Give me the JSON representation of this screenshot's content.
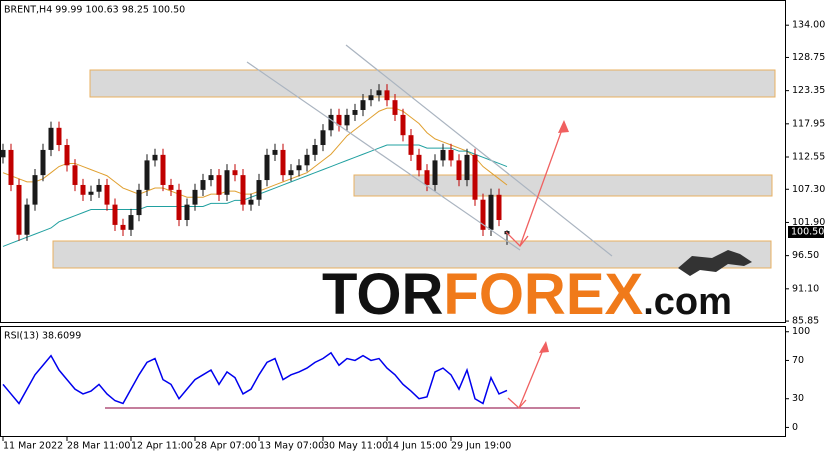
{
  "chart_data": {
    "type": "candlestick",
    "header": "BRENT,H4  99.99 100.63 98.25 100.50",
    "last_price_label": "100.50",
    "categories": [
      "11 Mar 2022",
      null,
      null,
      null,
      null,
      null,
      null,
      null,
      "28 Mar 11:00",
      null,
      null,
      null,
      null,
      null,
      null,
      null,
      "12 Apr 11:00",
      null,
      null,
      null,
      null,
      null,
      null,
      null,
      "28 Apr 07:00",
      null,
      null,
      null,
      null,
      null,
      null,
      null,
      "13 May 07:00",
      null,
      null,
      null,
      null,
      null,
      null,
      null,
      "30 May 11:00",
      null,
      null,
      null,
      null,
      null,
      null,
      null,
      "14 Jun 15:00",
      null,
      null,
      null,
      null,
      null,
      null,
      null,
      "29 Jun 19:00",
      null,
      null,
      null,
      null,
      null,
      null,
      null
    ],
    "open": [
      112.5,
      113.7,
      108.0,
      99.9,
      104.8,
      109.6,
      113.7,
      117.3,
      114.5,
      111.2,
      108.0,
      106.4,
      106.9,
      108.0,
      104.8,
      101.5,
      100.7,
      103.1,
      107.2,
      112.0,
      112.9,
      108.0,
      107.2,
      102.3,
      104.8,
      107.2,
      108.8,
      109.6,
      106.4,
      110.4,
      109.6,
      104.8,
      105.6,
      108.8,
      112.9,
      113.7,
      109.6,
      110.4,
      111.2,
      112.9,
      114.5,
      116.9,
      119.4,
      117.7,
      119.4,
      120.2,
      121.8,
      122.6,
      123.4,
      121.8,
      119.4,
      116.1,
      112.9,
      110.4,
      108.0,
      112.0,
      113.7,
      112.0,
      108.8,
      112.9,
      105.6,
      100.7,
      106.4,
      99.99
    ],
    "high": [
      114.7,
      114.7,
      109.0,
      105.8,
      110.6,
      114.7,
      118.3,
      118.3,
      115.5,
      112.2,
      109.0,
      107.9,
      109.0,
      109.0,
      105.8,
      102.5,
      104.1,
      108.2,
      113.0,
      113.9,
      113.9,
      109.0,
      108.2,
      105.8,
      108.2,
      109.8,
      110.6,
      110.6,
      111.4,
      111.4,
      110.6,
      106.6,
      109.8,
      113.9,
      114.7,
      114.7,
      111.4,
      112.2,
      113.9,
      115.5,
      117.9,
      120.4,
      120.4,
      120.4,
      121.2,
      122.8,
      123.6,
      124.4,
      124.4,
      122.8,
      120.4,
      117.1,
      113.9,
      111.4,
      113.0,
      114.7,
      114.7,
      113.0,
      113.9,
      113.9,
      106.6,
      107.4,
      107.4,
      100.63
    ],
    "low": [
      111.5,
      107.0,
      98.9,
      98.9,
      103.8,
      108.6,
      112.7,
      113.5,
      110.2,
      107.0,
      105.4,
      105.4,
      105.9,
      103.8,
      100.5,
      99.7,
      99.7,
      102.1,
      106.2,
      111.0,
      107.0,
      106.2,
      101.3,
      101.3,
      103.8,
      106.2,
      107.8,
      105.4,
      105.4,
      108.6,
      103.8,
      103.8,
      104.6,
      107.8,
      111.9,
      108.6,
      108.6,
      109.4,
      110.2,
      111.9,
      113.5,
      115.9,
      116.7,
      116.7,
      118.4,
      119.2,
      120.8,
      121.6,
      120.8,
      118.4,
      115.1,
      111.9,
      109.4,
      107.0,
      107.0,
      111.0,
      111.0,
      107.8,
      107.8,
      104.6,
      99.7,
      99.7,
      101.3,
      98.25
    ],
    "close": [
      113.7,
      108.0,
      99.9,
      104.8,
      109.6,
      113.7,
      117.3,
      114.5,
      111.2,
      108.0,
      106.4,
      106.9,
      108.0,
      104.8,
      101.5,
      100.7,
      103.1,
      107.2,
      112.0,
      112.9,
      108.0,
      107.2,
      102.3,
      104.8,
      107.2,
      108.8,
      109.6,
      106.4,
      110.4,
      109.6,
      104.8,
      105.6,
      108.8,
      112.9,
      113.7,
      109.6,
      110.4,
      111.2,
      112.9,
      114.5,
      116.9,
      119.4,
      117.7,
      119.4,
      120.2,
      121.8,
      122.6,
      123.4,
      121.8,
      119.4,
      116.1,
      112.9,
      110.4,
      108.0,
      112.0,
      113.7,
      112.0,
      108.8,
      112.9,
      105.6,
      100.7,
      106.4,
      102.3,
      100.5
    ],
    "up_color": "#1a1a1a",
    "down_color": "#c00000",
    "moving_averages": [
      {
        "color": "#e0a030",
        "values": [
          110,
          109.5,
          109,
          108.5,
          108.5,
          109,
          110,
          111,
          111.5,
          111.5,
          111,
          110.5,
          110,
          109.5,
          108.5,
          107.5,
          107,
          106.5,
          107,
          107.5,
          107.5,
          107,
          106.5,
          106,
          106,
          106,
          106.5,
          106.5,
          107,
          107,
          106.5,
          106.5,
          107,
          107.5,
          108,
          108.5,
          109,
          109.5,
          110,
          111,
          112,
          113,
          114.5,
          116,
          117,
          118,
          119,
          120,
          120.5,
          120.5,
          120,
          119,
          118,
          116.5,
          115.5,
          115,
          114.5,
          114,
          113.5,
          112.5,
          111,
          110,
          109,
          108
        ]
      },
      {
        "color": "#20a0a0",
        "values": [
          98,
          98.5,
          99,
          99.5,
          100,
          100.5,
          101,
          102,
          102.5,
          103,
          103.5,
          104,
          104,
          104,
          104,
          104,
          104,
          104,
          104.5,
          104.5,
          104.5,
          104.5,
          104.5,
          104.5,
          104.5,
          104.5,
          105,
          105,
          105,
          105.5,
          105.5,
          106,
          106.5,
          107,
          107.5,
          108,
          108.5,
          109,
          109.5,
          110,
          110.5,
          111,
          111.5,
          112,
          112.5,
          113,
          113.5,
          114,
          114.5,
          114.5,
          114.5,
          114.5,
          114.5,
          114,
          114,
          114,
          114,
          113.5,
          113.5,
          113,
          112.5,
          112,
          111.5,
          111
        ]
      }
    ],
    "ylim": [
      85.7,
      138.1
    ],
    "yticks": [
      {
        "value": 134,
        "label": "134.00"
      },
      {
        "value": 128.75,
        "label": "128.75"
      },
      {
        "value": 123.35,
        "label": "123.35"
      },
      {
        "value": 117.95,
        "label": "117.95"
      },
      {
        "value": 112.55,
        "label": "112.55"
      },
      {
        "value": 107.3,
        "label": "107.30"
      },
      {
        "value": 101.9,
        "label": "101.90"
      },
      {
        "value": 96.5,
        "label": "96.50"
      },
      {
        "value": 91.1,
        "label": "91.10"
      },
      {
        "value": 85.85,
        "label": "85.85"
      }
    ],
    "rsi": {
      "label": "RSI(13) 38.6099",
      "color": "#0000ee",
      "values": [
        45,
        35,
        25,
        40,
        55,
        65,
        75,
        60,
        50,
        40,
        35,
        38,
        45,
        35,
        28,
        25,
        40,
        55,
        68,
        72,
        50,
        45,
        30,
        40,
        50,
        55,
        60,
        45,
        58,
        52,
        35,
        40,
        55,
        68,
        72,
        50,
        55,
        58,
        62,
        68,
        72,
        78,
        65,
        72,
        70,
        75,
        70,
        72,
        62,
        55,
        45,
        38,
        30,
        32,
        58,
        62,
        55,
        40,
        60,
        30,
        25,
        52,
        35,
        38.6099
      ],
      "ylim": [
        -10,
        106
      ],
      "yticks": [
        100,
        70,
        30,
        0
      ]
    },
    "watermark": {
      "part1": "TOR",
      "part2": "FOREX",
      "part3": ".com"
    }
  }
}
